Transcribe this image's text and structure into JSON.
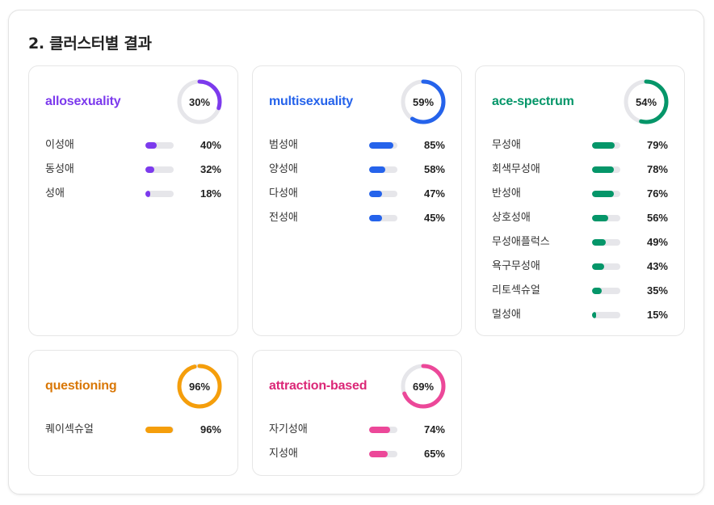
{
  "section": {
    "title": "2. 클러스터별 결과"
  },
  "clusters": [
    {
      "name": "allosexuality",
      "percent": 30,
      "percent_label": "30%",
      "color": "#7c3aed",
      "items": [
        {
          "label": "이성애",
          "value": 40,
          "pct_label": "40%"
        },
        {
          "label": "동성애",
          "value": 32,
          "pct_label": "32%"
        },
        {
          "label": "성애",
          "value": 18,
          "pct_label": "18%"
        }
      ]
    },
    {
      "name": "multisexuality",
      "percent": 59,
      "percent_label": "59%",
      "color": "#2563eb",
      "items": [
        {
          "label": "범성애",
          "value": 85,
          "pct_label": "85%"
        },
        {
          "label": "양성애",
          "value": 58,
          "pct_label": "58%"
        },
        {
          "label": "다성애",
          "value": 47,
          "pct_label": "47%"
        },
        {
          "label": "전성애",
          "value": 45,
          "pct_label": "45%"
        }
      ]
    },
    {
      "name": "ace-spectrum",
      "percent": 54,
      "percent_label": "54%",
      "color": "#059669",
      "items": [
        {
          "label": "무성애",
          "value": 79,
          "pct_label": "79%"
        },
        {
          "label": "회색무성애",
          "value": 78,
          "pct_label": "78%"
        },
        {
          "label": "반성애",
          "value": 76,
          "pct_label": "76%"
        },
        {
          "label": "상호성애",
          "value": 56,
          "pct_label": "56%"
        },
        {
          "label": "무성애플럭스",
          "value": 49,
          "pct_label": "49%"
        },
        {
          "label": "욕구무성애",
          "value": 43,
          "pct_label": "43%"
        },
        {
          "label": "리토섹슈얼",
          "value": 35,
          "pct_label": "35%"
        },
        {
          "label": "멀성애",
          "value": 15,
          "pct_label": "15%"
        }
      ]
    },
    {
      "name": "questioning",
      "percent": 96,
      "percent_label": "96%",
      "color": "#d97706",
      "ring_color": "#f59e0b",
      "items": [
        {
          "label": "퀘이섹슈얼",
          "value": 96,
          "pct_label": "96%"
        }
      ]
    },
    {
      "name": "attraction-based",
      "percent": 69,
      "percent_label": "69%",
      "color": "#db2777",
      "ring_color": "#ec4899",
      "items": [
        {
          "label": "자기성애",
          "value": 74,
          "pct_label": "74%"
        },
        {
          "label": "지성애",
          "value": 65,
          "pct_label": "65%"
        }
      ]
    }
  ]
}
